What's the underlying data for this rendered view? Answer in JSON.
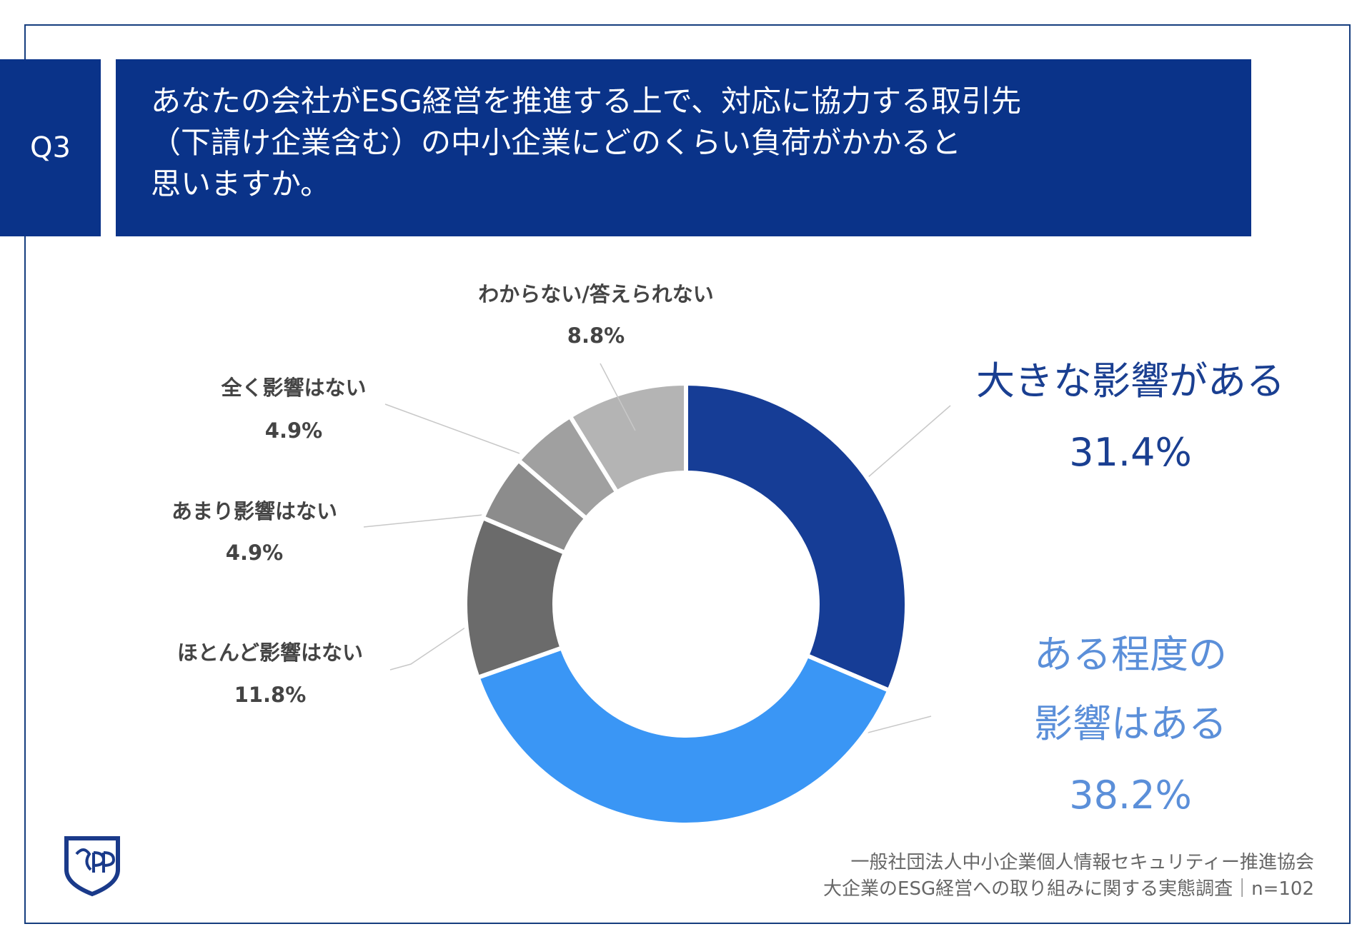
{
  "header": {
    "badge": "Q3",
    "title_lines": [
      "あなたの会社がESG経営を推進する上で、対応に協力する取引先",
      "（下請け企業含む）の中小企業にどのくらい負荷がかかると",
      "思いますか。"
    ]
  },
  "chart_data": {
    "type": "donut",
    "categories": [
      "大きな影響がある",
      "ある程度の影響はある",
      "ほとんど影響はない",
      "あまり影響はない",
      "全く影響はない",
      "わからない/答えられない"
    ],
    "values": [
      31.4,
      38.2,
      11.8,
      4.9,
      4.9,
      8.8
    ],
    "value_labels": [
      "31.4%",
      "38.2%",
      "11.8%",
      "4.9%",
      "4.9%",
      "8.8%"
    ],
    "colors": [
      "#163d96",
      "#3a96f5",
      "#6b6b6b",
      "#8c8c8c",
      "#a0a0a0",
      "#b4b4b4"
    ],
    "label_colors": [
      "#1a3f91",
      "#5b8fd9",
      "#444444",
      "#444444",
      "#444444",
      "#444444"
    ]
  },
  "footer": {
    "lines": [
      "一般社団法人中小企業個人情報セキュリティー推進協会",
      "大企業のESG経営への取り組みに関する実態調査｜n=102"
    ]
  }
}
